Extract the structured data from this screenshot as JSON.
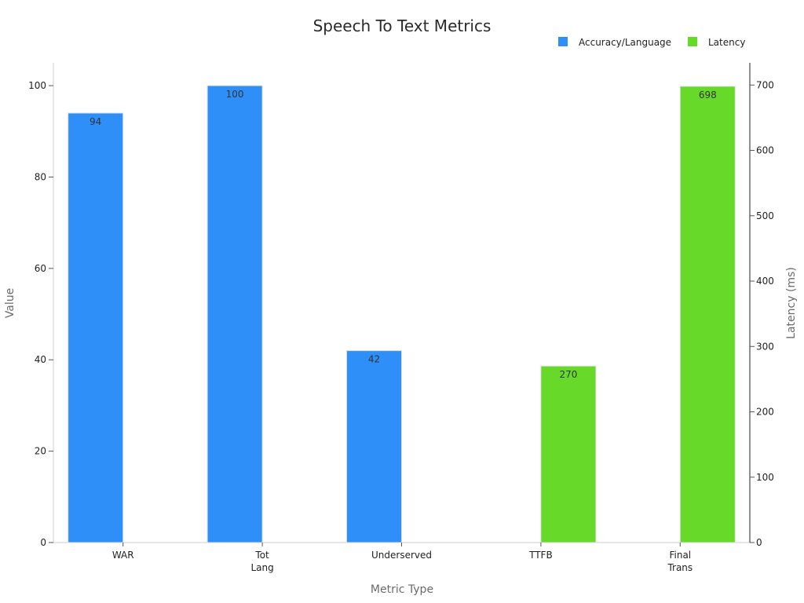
{
  "chart_data": {
    "type": "bar",
    "title": "Speech To Text Metrics",
    "xlabel": "Metric Type",
    "ylabel": "Value",
    "y2label": "Latency (ms)",
    "categories": [
      [
        "WAR"
      ],
      [
        "Tot",
        "Lang"
      ],
      [
        "Underserved"
      ],
      [
        "TTFB"
      ],
      [
        "Final",
        "Trans"
      ]
    ],
    "ylim": [
      0,
      105
    ],
    "y2lim": [
      0,
      734
    ],
    "yticks": [
      0,
      20,
      40,
      60,
      80,
      100
    ],
    "y2ticks": [
      0,
      100,
      200,
      300,
      400,
      500,
      600,
      700
    ],
    "grid": false,
    "legend_position": "top-right",
    "series": [
      {
        "name": "Accuracy/Language",
        "axis": "left",
        "color": "#2d8ff7",
        "values": [
          94,
          100,
          42,
          null,
          null
        ]
      },
      {
        "name": "Latency",
        "axis": "right",
        "color": "#66d929",
        "values": [
          null,
          null,
          null,
          270,
          698
        ]
      }
    ]
  }
}
